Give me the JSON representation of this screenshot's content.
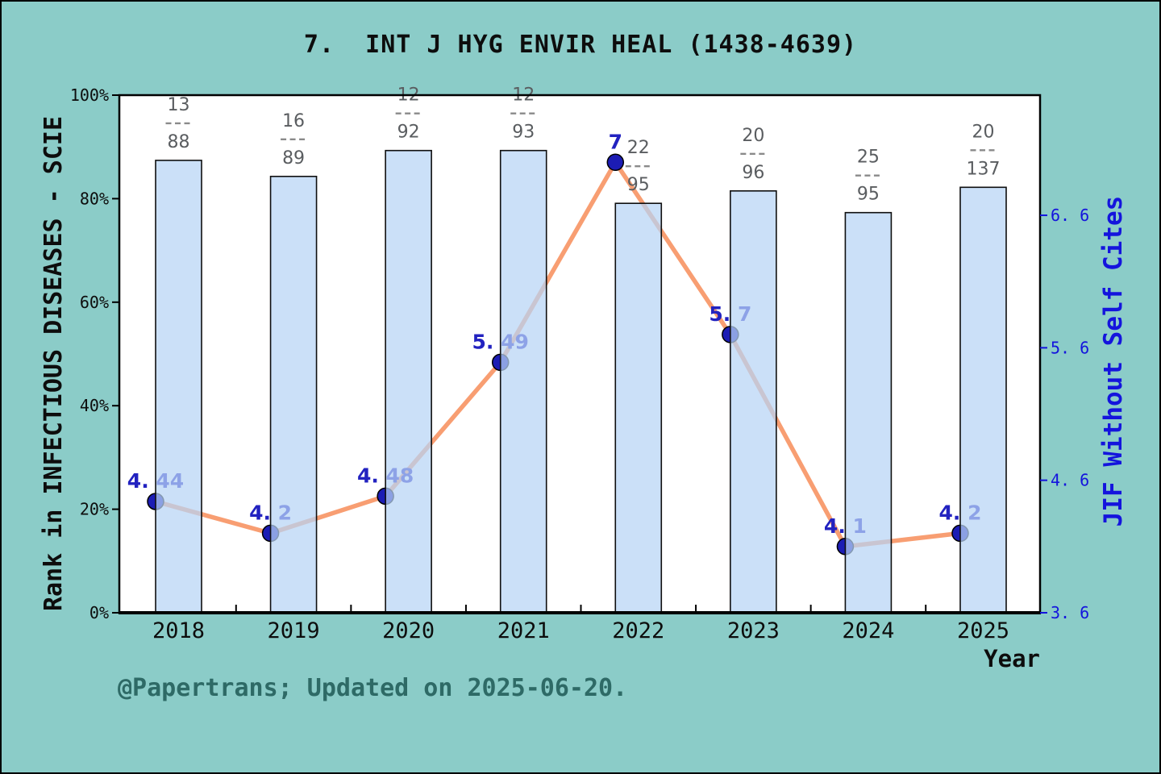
{
  "page": {
    "background_color": "#8bccc8",
    "footer_text": "@Papertrans; Updated on 2025-06-20."
  },
  "chart_data": {
    "type": "bar+line",
    "title": "7.  INT J HYG ENVIR HEAL (1438-4639)",
    "xlabel": "Year",
    "categories": [
      "2018",
      "2019",
      "2020",
      "2021",
      "2022",
      "2023",
      "2024",
      "2025"
    ],
    "grid": false,
    "legend": null,
    "left_axis": {
      "label": "Rank in INFECTIOUS DISEASES - SCIE",
      "tick_labels": [
        "0%",
        "20%",
        "40%",
        "60%",
        "80%",
        "100%"
      ],
      "tick_values": [
        0,
        20,
        40,
        60,
        80,
        100
      ],
      "range": [
        0,
        100
      ]
    },
    "right_axis": {
      "label": "JIF Without Self Cites",
      "tick_labels": [
        "3. 6",
        "4. 6",
        "5. 6",
        "6. 6"
      ],
      "tick_values": [
        3.6,
        4.6,
        5.6,
        6.6
      ],
      "range": [
        3.6,
        7.507
      ]
    },
    "series": [
      {
        "name": "Rank in INFECTIOUS DISEASES - SCIE (percentile)",
        "type": "bar",
        "axis": "left",
        "unit": "%",
        "values": [
          87.4,
          84.3,
          89.3,
          89.3,
          79.1,
          81.5,
          77.3,
          82.2
        ],
        "bar_labels": [
          {
            "numerator": "13",
            "denominator": "88"
          },
          {
            "numerator": "16",
            "denominator": "89"
          },
          {
            "numerator": "12",
            "denominator": "92"
          },
          {
            "numerator": "12",
            "denominator": "93"
          },
          {
            "numerator": "22",
            "denominator": "95"
          },
          {
            "numerator": "20",
            "denominator": "96"
          },
          {
            "numerator": "25",
            "denominator": "95"
          },
          {
            "numerator": "20",
            "denominator": "137"
          }
        ]
      },
      {
        "name": "JIF Without Self Cites",
        "type": "line",
        "axis": "right",
        "values": [
          4.44,
          4.2,
          4.48,
          5.49,
          7,
          5.7,
          4.1,
          4.2
        ],
        "point_labels": [
          "4. 44",
          "4. 2",
          "4. 48",
          "5. 49",
          "7",
          "5. 7",
          "4. 1",
          "4. 2"
        ]
      }
    ],
    "colors": {
      "background": "#8bccc8",
      "plot_background": "#ffffff",
      "bar_fill": "rgba(183,212,245,0.72)",
      "bar_edge": "#0f0f0f",
      "line": "#f89e72",
      "marker_fill": "#1c1cb4",
      "marker_edge": "#000000",
      "point_label": "#2222c0",
      "fraction_label": "#5a5d60",
      "fraction_dash": "#8a8a8a",
      "left_axis_color": "#0d0d0d",
      "right_axis_color": "#1414dd",
      "footer_color": "#2e6a66"
    }
  }
}
